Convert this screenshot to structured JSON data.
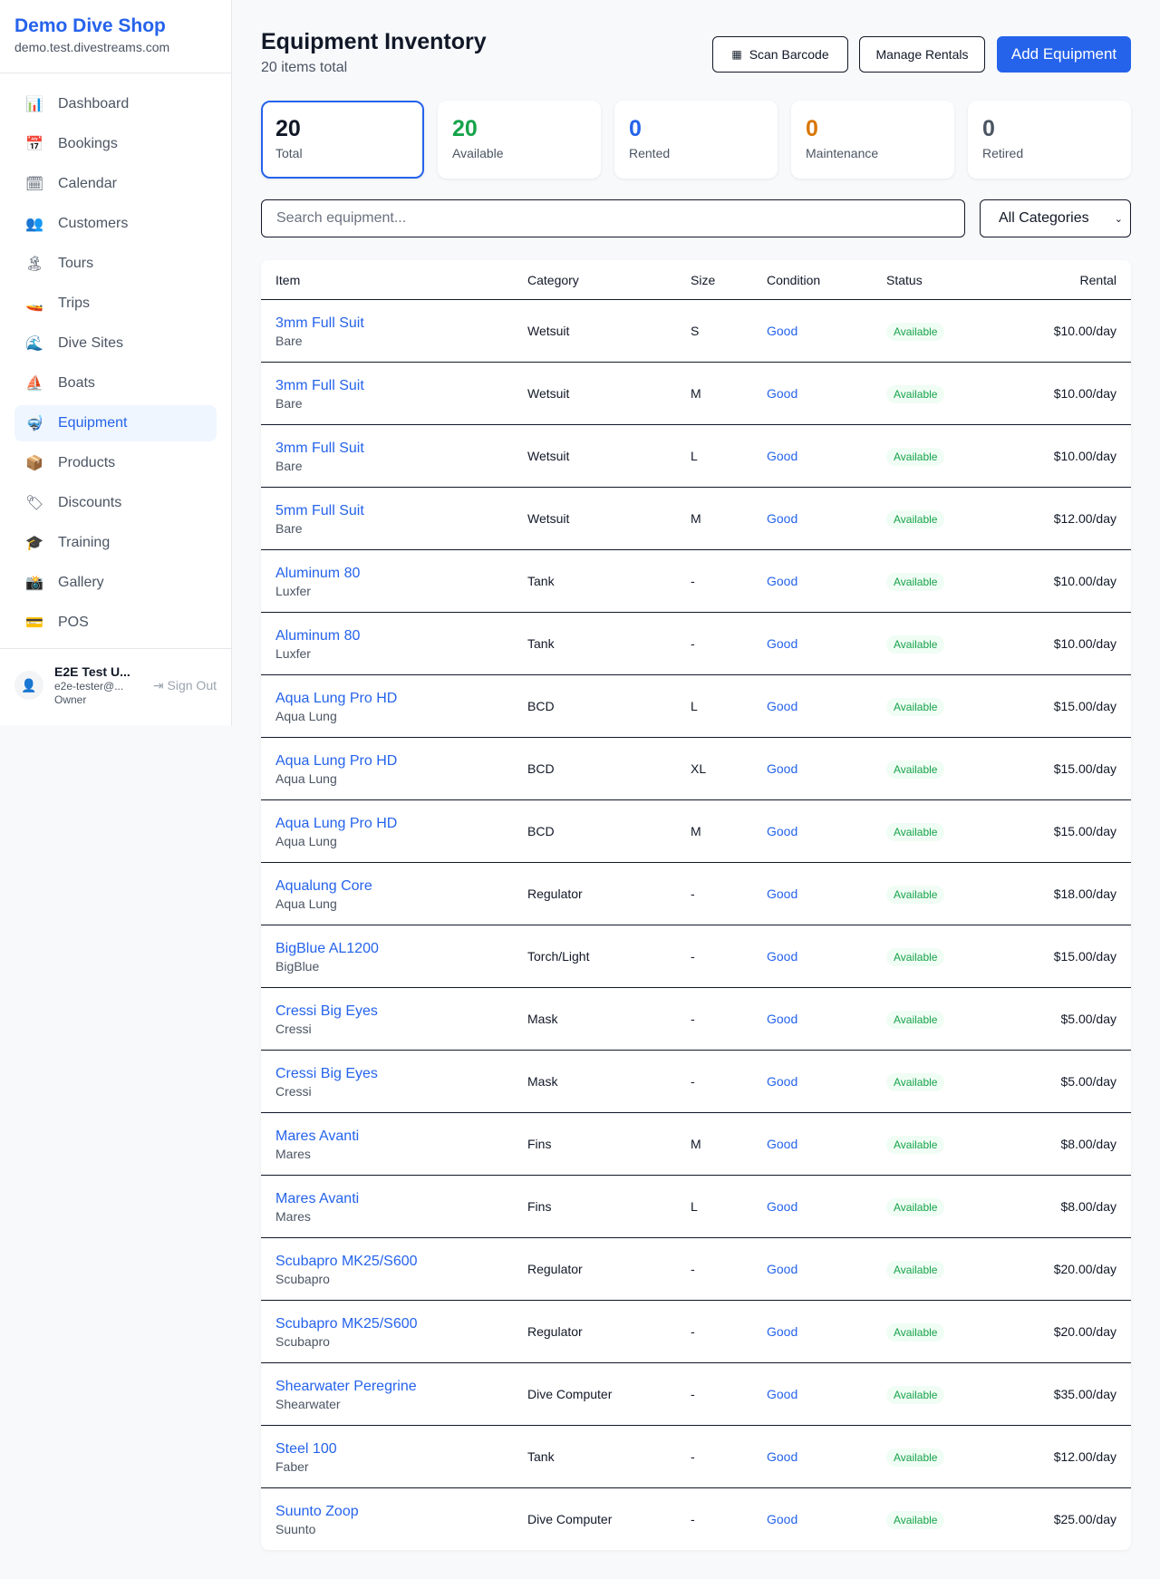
{
  "sidebar": {
    "shop_name": "Demo Dive Shop",
    "domain": "demo.test.divestreams.com",
    "items": [
      {
        "label": "Dashboard",
        "icon": "📊"
      },
      {
        "label": "Bookings",
        "icon": "📅"
      },
      {
        "label": "Calendar",
        "icon": "🗓"
      },
      {
        "label": "Customers",
        "icon": "👥"
      },
      {
        "label": "Tours",
        "icon": "🏝"
      },
      {
        "label": "Trips",
        "icon": "🚤"
      },
      {
        "label": "Dive Sites",
        "icon": "🌊"
      },
      {
        "label": "Boats",
        "icon": "⛵"
      },
      {
        "label": "Equipment",
        "icon": "🤿",
        "active": true
      },
      {
        "label": "Products",
        "icon": "📦"
      },
      {
        "label": "Discounts",
        "icon": "🏷"
      },
      {
        "label": "Training",
        "icon": "🎓"
      },
      {
        "label": "Gallery",
        "icon": "📸"
      },
      {
        "label": "POS",
        "icon": "💳"
      }
    ],
    "user": {
      "name": "E2E Test U...",
      "email": "e2e-tester@...",
      "role": "Owner",
      "sign_out": "Sign Out"
    }
  },
  "header": {
    "title": "Equipment Inventory",
    "subtitle": "20 items total",
    "scan": "Scan Barcode",
    "manage": "Manage Rentals",
    "add": "Add Equipment"
  },
  "stats": [
    {
      "value": "20",
      "label": "Total",
      "color": "#111827"
    },
    {
      "value": "20",
      "label": "Available",
      "color": "#16a34a"
    },
    {
      "value": "0",
      "label": "Rented",
      "color": "#2563eb"
    },
    {
      "value": "0",
      "label": "Maintenance",
      "color": "#d97706"
    },
    {
      "value": "0",
      "label": "Retired",
      "color": "#4b5563"
    }
  ],
  "filters": {
    "search_placeholder": "Search equipment...",
    "category": "All Categories"
  },
  "table": {
    "headers": {
      "item": "Item",
      "category": "Category",
      "size": "Size",
      "condition": "Condition",
      "status": "Status",
      "rental": "Rental"
    },
    "rows": [
      {
        "name": "3mm Full Suit",
        "brand": "Bare",
        "category": "Wetsuit",
        "size": "S",
        "condition": "Good",
        "status": "Available",
        "rental": "$10.00/day"
      },
      {
        "name": "3mm Full Suit",
        "brand": "Bare",
        "category": "Wetsuit",
        "size": "M",
        "condition": "Good",
        "status": "Available",
        "rental": "$10.00/day"
      },
      {
        "name": "3mm Full Suit",
        "brand": "Bare",
        "category": "Wetsuit",
        "size": "L",
        "condition": "Good",
        "status": "Available",
        "rental": "$10.00/day"
      },
      {
        "name": "5mm Full Suit",
        "brand": "Bare",
        "category": "Wetsuit",
        "size": "M",
        "condition": "Good",
        "status": "Available",
        "rental": "$12.00/day"
      },
      {
        "name": "Aluminum 80",
        "brand": "Luxfer",
        "category": "Tank",
        "size": "-",
        "condition": "Good",
        "status": "Available",
        "rental": "$10.00/day"
      },
      {
        "name": "Aluminum 80",
        "brand": "Luxfer",
        "category": "Tank",
        "size": "-",
        "condition": "Good",
        "status": "Available",
        "rental": "$10.00/day"
      },
      {
        "name": "Aqua Lung Pro HD",
        "brand": "Aqua Lung",
        "category": "BCD",
        "size": "L",
        "condition": "Good",
        "status": "Available",
        "rental": "$15.00/day"
      },
      {
        "name": "Aqua Lung Pro HD",
        "brand": "Aqua Lung",
        "category": "BCD",
        "size": "XL",
        "condition": "Good",
        "status": "Available",
        "rental": "$15.00/day"
      },
      {
        "name": "Aqua Lung Pro HD",
        "brand": "Aqua Lung",
        "category": "BCD",
        "size": "M",
        "condition": "Good",
        "status": "Available",
        "rental": "$15.00/day"
      },
      {
        "name": "Aqualung Core",
        "brand": "Aqua Lung",
        "category": "Regulator",
        "size": "-",
        "condition": "Good",
        "status": "Available",
        "rental": "$18.00/day"
      },
      {
        "name": "BigBlue AL1200",
        "brand": "BigBlue",
        "category": "Torch/Light",
        "size": "-",
        "condition": "Good",
        "status": "Available",
        "rental": "$15.00/day"
      },
      {
        "name": "Cressi Big Eyes",
        "brand": "Cressi",
        "category": "Mask",
        "size": "-",
        "condition": "Good",
        "status": "Available",
        "rental": "$5.00/day"
      },
      {
        "name": "Cressi Big Eyes",
        "brand": "Cressi",
        "category": "Mask",
        "size": "-",
        "condition": "Good",
        "status": "Available",
        "rental": "$5.00/day"
      },
      {
        "name": "Mares Avanti",
        "brand": "Mares",
        "category": "Fins",
        "size": "M",
        "condition": "Good",
        "status": "Available",
        "rental": "$8.00/day"
      },
      {
        "name": "Mares Avanti",
        "brand": "Mares",
        "category": "Fins",
        "size": "L",
        "condition": "Good",
        "status": "Available",
        "rental": "$8.00/day"
      },
      {
        "name": "Scubapro MK25/S600",
        "brand": "Scubapro",
        "category": "Regulator",
        "size": "-",
        "condition": "Good",
        "status": "Available",
        "rental": "$20.00/day"
      },
      {
        "name": "Scubapro MK25/S600",
        "brand": "Scubapro",
        "category": "Regulator",
        "size": "-",
        "condition": "Good",
        "status": "Available",
        "rental": "$20.00/day"
      },
      {
        "name": "Shearwater Peregrine",
        "brand": "Shearwater",
        "category": "Dive Computer",
        "size": "-",
        "condition": "Good",
        "status": "Available",
        "rental": "$35.00/day"
      },
      {
        "name": "Steel 100",
        "brand": "Faber",
        "category": "Tank",
        "size": "-",
        "condition": "Good",
        "status": "Available",
        "rental": "$12.00/day"
      },
      {
        "name": "Suunto Zoop",
        "brand": "Suunto",
        "category": "Dive Computer",
        "size": "-",
        "condition": "Good",
        "status": "Available",
        "rental": "$25.00/day"
      }
    ]
  }
}
